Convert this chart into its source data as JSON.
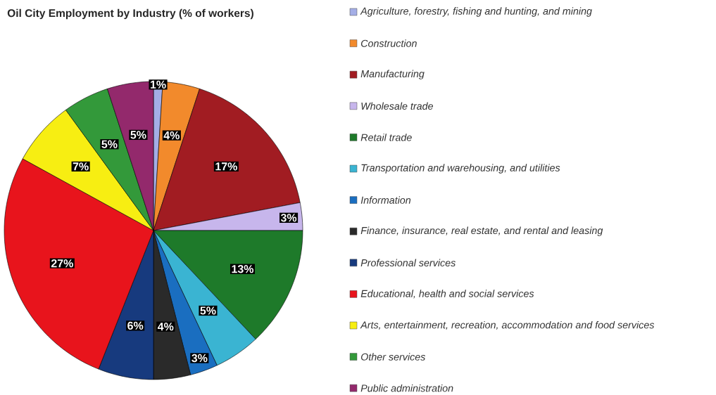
{
  "chart_data": {
    "type": "pie",
    "title": "Oil City Employment by Industry (% of workers)",
    "categories": [
      "Agriculture, forestry, fishing and hunting, and mining",
      "Construction",
      "Manufacturing",
      "Wholesale trade",
      "Retail trade",
      "Transportation and warehousing, and utilities",
      "Information",
      "Finance, insurance, real estate, and rental and leasing",
      "Professional services",
      "Educational, health and social services",
      "Arts, entertainment, recreation, accommodation and food services",
      "Other services",
      "Public administration"
    ],
    "values": [
      1,
      4,
      17,
      3,
      13,
      5,
      3,
      4,
      6,
      27,
      7,
      5,
      5
    ],
    "value_labels": [
      "1%",
      "4%",
      "17%",
      "3%",
      "13%",
      "5%",
      "3%",
      "4%",
      "6%",
      "27%",
      "7%",
      "5%",
      "5%"
    ],
    "colors": [
      "#a4aee6",
      "#f28a2c",
      "#a11c22",
      "#c7b6ec",
      "#1e7a2a",
      "#3ab4d2",
      "#1a6ec0",
      "#2a2a2a",
      "#173a7e",
      "#e8141c",
      "#f7ee12",
      "#33993a",
      "#93296c"
    ],
    "legend": "right"
  }
}
